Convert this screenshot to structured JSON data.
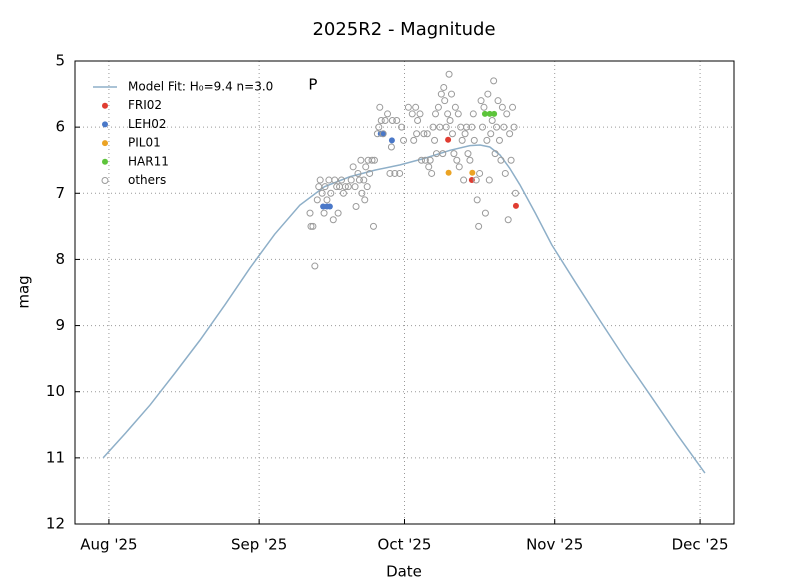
{
  "chart_data": {
    "type": "scatter",
    "title": "2025R2 - Magnitude",
    "x_label": "Date",
    "y_label": "mag",
    "xlim": [
      206,
      342
    ],
    "xticks": [
      {
        "value": 213,
        "label": "Aug '25"
      },
      {
        "value": 244,
        "label": "Sep '25"
      },
      {
        "value": 274,
        "label": "Oct '25"
      },
      {
        "value": 305,
        "label": "Nov '25"
      },
      {
        "value": 335,
        "label": "Dec '25"
      }
    ],
    "ylim": [
      5,
      12
    ],
    "yticks": [
      5,
      6,
      7,
      8,
      9,
      10,
      11,
      12
    ],
    "y_inverted": true,
    "grid": true,
    "legend": "upper left",
    "annotations": [
      {
        "text": "P",
        "x": 255.1,
        "y": 5.36
      }
    ],
    "series": [
      {
        "name": "Model Fit: H₀=9.4 n=3.0",
        "kind": "line",
        "color": "#8eafc8",
        "x": [
          211.8,
          216.5,
          221.5,
          226.5,
          231.8,
          237.0,
          242.1,
          247.2,
          252.4,
          257.5,
          262.7,
          267.9,
          273.1,
          278.2,
          283.4,
          287.5,
          289.6,
          291.6,
          293.7,
          295.7,
          297.8,
          301.0,
          304.4,
          309.3,
          314.3,
          319.5,
          324.7,
          330.3,
          336.0
        ],
        "values": [
          11.0,
          10.62,
          10.2,
          9.73,
          9.22,
          8.68,
          8.13,
          7.62,
          7.18,
          6.9,
          6.75,
          6.65,
          6.57,
          6.47,
          6.35,
          6.28,
          6.27,
          6.3,
          6.42,
          6.62,
          6.87,
          7.3,
          7.78,
          8.35,
          8.92,
          9.5,
          10.05,
          10.65,
          11.23
        ]
      },
      {
        "name": "FRI02",
        "kind": "point",
        "color": "#e03c31",
        "x": [
          283.0,
          287.9,
          297.0
        ],
        "values": [
          6.19,
          6.8,
          7.19
        ]
      },
      {
        "name": "LEH02",
        "kind": "point",
        "color": "#4a78c8",
        "x": [
          269.1,
          269.6,
          271.4,
          257.2,
          258.0,
          258.6
        ],
        "values": [
          6.1,
          6.1,
          6.2,
          7.2,
          7.2,
          7.2
        ]
      },
      {
        "name": "PIL01",
        "kind": "point",
        "color": "#eba324",
        "x": [
          283.1,
          288.0
        ],
        "values": [
          6.69,
          6.69
        ]
      },
      {
        "name": "HAR11",
        "kind": "point",
        "color": "#5dc43b",
        "x": [
          290.6,
          291.6,
          292.5
        ],
        "values": [
          5.8,
          5.8,
          5.8
        ]
      },
      {
        "name": "others",
        "kind": "hollow",
        "color": "#9a9a9a",
        "x": [
          255.5,
          254.7,
          255.1,
          254.5,
          256.0,
          256.3,
          256.6,
          257.0,
          257.4,
          257.6,
          258.0,
          258.4,
          258.8,
          259.3,
          259.6,
          260.0,
          260.3,
          260.6,
          261.0,
          261.4,
          261.8,
          262.4,
          263.0,
          263.4,
          263.8,
          264.0,
          264.4,
          264.7,
          265.0,
          265.2,
          265.6,
          265.8,
          266.0,
          266.3,
          266.5,
          266.8,
          267.3,
          267.6,
          267.8,
          268.4,
          268.7,
          268.9,
          269.2,
          269.6,
          270.0,
          270.5,
          271.0,
          271.3,
          271.5,
          272.0,
          272.4,
          273.0,
          273.4,
          273.8,
          274.8,
          275.6,
          275.9,
          276.3,
          276.5,
          276.7,
          277.2,
          277.5,
          278.0,
          278.3,
          278.7,
          279.0,
          279.3,
          279.6,
          279.9,
          280.2,
          280.4,
          280.6,
          281.0,
          281.3,
          281.6,
          281.9,
          282.1,
          282.3,
          282.6,
          282.9,
          283.2,
          283.4,
          283.7,
          283.9,
          284.2,
          284.5,
          284.8,
          285.1,
          285.3,
          285.6,
          285.9,
          286.2,
          286.5,
          286.8,
          287.1,
          287.5,
          287.9,
          288.2,
          288.4,
          288.8,
          289.0,
          289.3,
          289.5,
          289.8,
          290.1,
          290.4,
          290.7,
          291.0,
          291.2,
          291.5,
          291.8,
          292.1,
          292.4,
          292.7,
          293.0,
          293.3,
          293.6,
          293.9,
          294.2,
          294.5,
          294.8,
          295.1,
          295.4,
          295.7,
          296.0,
          296.3,
          296.6,
          296.9
        ],
        "values": [
          8.1,
          7.5,
          7.5,
          7.3,
          7.1,
          6.9,
          6.8,
          7.0,
          7.3,
          6.9,
          7.1,
          6.8,
          7.0,
          7.4,
          6.8,
          6.9,
          7.3,
          6.9,
          6.8,
          7.0,
          6.9,
          6.9,
          6.8,
          6.6,
          6.9,
          7.2,
          6.7,
          6.8,
          6.5,
          7.0,
          6.8,
          7.1,
          6.6,
          6.9,
          6.5,
          6.7,
          6.5,
          7.5,
          6.5,
          6.1,
          6.0,
          5.7,
          5.9,
          6.1,
          5.9,
          5.8,
          6.7,
          6.3,
          5.9,
          6.7,
          5.9,
          6.7,
          6.0,
          6.2,
          5.7,
          5.8,
          6.2,
          5.7,
          6.1,
          5.9,
          5.8,
          6.5,
          6.1,
          6.5,
          6.1,
          6.6,
          6.5,
          6.7,
          6.0,
          6.2,
          5.8,
          6.4,
          5.7,
          6.0,
          5.5,
          6.4,
          5.4,
          5.6,
          6.0,
          5.8,
          5.2,
          5.9,
          5.5,
          6.1,
          6.4,
          5.7,
          6.5,
          5.8,
          6.6,
          6.0,
          6.2,
          6.8,
          6.1,
          6.0,
          6.4,
          6.5,
          6.0,
          5.8,
          6.2,
          6.8,
          7.1,
          7.5,
          6.7,
          5.6,
          6.0,
          5.7,
          7.3,
          6.2,
          5.5,
          6.8,
          6.1,
          5.9,
          5.3,
          6.4,
          6.0,
          5.6,
          6.2,
          6.5,
          5.7,
          6.0,
          6.7,
          5.8,
          7.4,
          6.1,
          6.5,
          5.7,
          6.0,
          7.0
        ]
      }
    ]
  }
}
